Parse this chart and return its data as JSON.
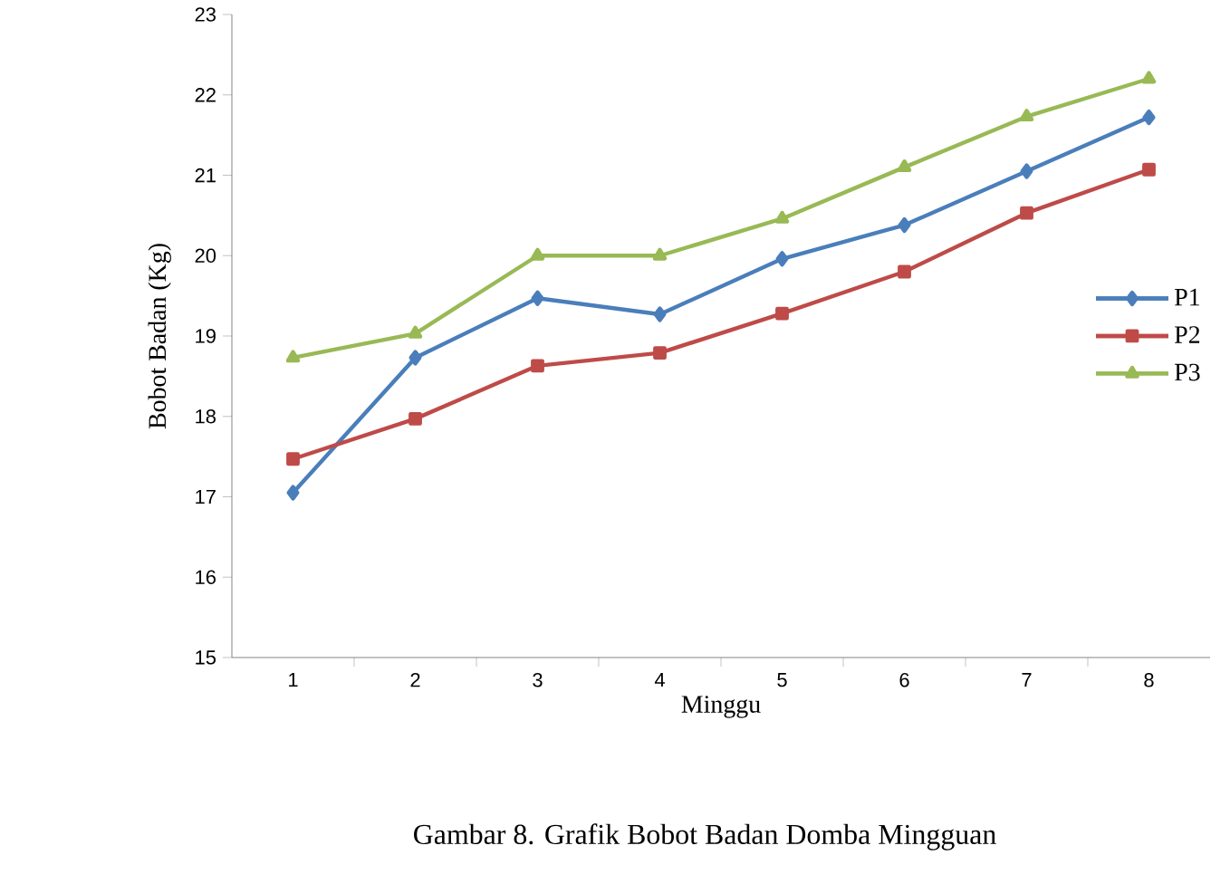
{
  "chart_data": {
    "type": "line",
    "xlabel": "Minggu",
    "ylabel": "Bobot Badan (Kg)",
    "annotations": [
      "Gambar 8. Grafik Bobot Badan Domba Mingguan"
    ],
    "categories": [
      "1",
      "2",
      "3",
      "4",
      "5",
      "6",
      "7",
      "8"
    ],
    "series": [
      {
        "name": "P1",
        "color": "#4a7ebb",
        "marker": "diamond",
        "values": [
          17.05,
          18.73,
          19.47,
          19.27,
          19.96,
          20.38,
          21.05,
          21.72
        ]
      },
      {
        "name": "P2",
        "color": "#be4b48",
        "marker": "square",
        "values": [
          17.47,
          17.97,
          18.63,
          18.79,
          19.28,
          19.8,
          20.53,
          21.07
        ]
      },
      {
        "name": "P3",
        "color": "#98b954",
        "marker": "triangle",
        "values": [
          18.73,
          19.03,
          20.0,
          20.0,
          20.46,
          21.1,
          21.73,
          22.2
        ]
      }
    ],
    "ylim": [
      15,
      23
    ],
    "yticks": [
      15,
      16,
      17,
      18,
      19,
      20,
      21,
      22,
      23
    ],
    "legend": "right",
    "grid": false,
    "line_style": "solid"
  }
}
